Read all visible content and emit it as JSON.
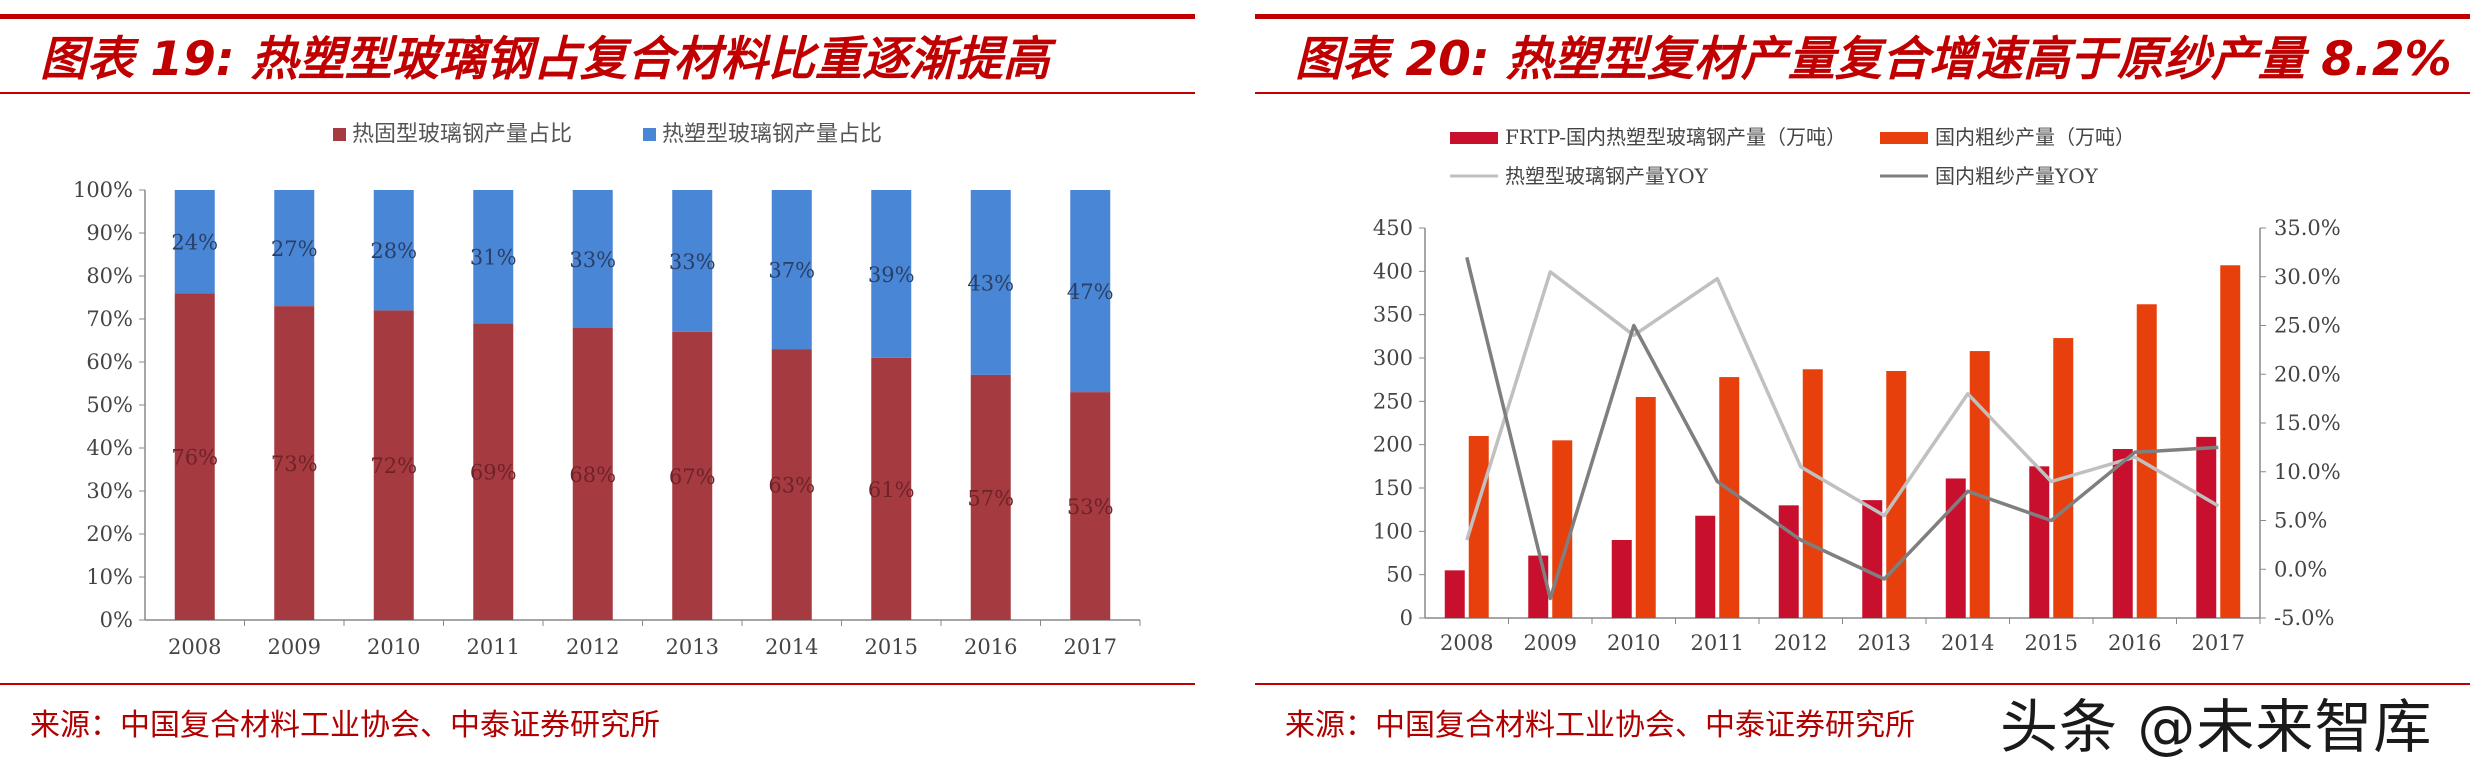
{
  "left": {
    "title": "图表 19: 热塑型玻璃钢占复合材料比重逐渐提高",
    "source": "来源：中国复合材料工业协会、中泰证券研究所"
  },
  "right": {
    "title": "图表 20: 热塑型复材产量复合增速高于原纱产量 8.2%",
    "source": "来源：中国复合材料工业协会、中泰证券研究所"
  },
  "watermark": "头条 @未来智库",
  "colors": {
    "accent": "#c00000",
    "thermoset": "#a63a41",
    "thermoplastic": "#4a86d6",
    "frtp_bar": "#c8102e",
    "roving_bar": "#e8400c",
    "frtp_yoy_line": "#c0c0c0",
    "roving_yoy_line": "#7f7f7f"
  },
  "chart_data": [
    {
      "type": "bar",
      "stacked": true,
      "categories": [
        "2008",
        "2009",
        "2010",
        "2011",
        "2012",
        "2013",
        "2014",
        "2015",
        "2016",
        "2017"
      ],
      "series": [
        {
          "name": "热固型玻璃钢产量占比",
          "values": [
            76,
            73,
            72,
            69,
            68,
            67,
            63,
            61,
            57,
            53
          ]
        },
        {
          "name": "热塑型玻璃钢产量占比",
          "values": [
            24,
            27,
            28,
            31,
            33,
            33,
            37,
            39,
            43,
            47
          ]
        }
      ],
      "data_labels": {
        "thermoset": [
          "76%",
          "73%",
          "72%",
          "69%",
          "68%",
          "67%",
          "63%",
          "61%",
          "57%",
          "53%"
        ],
        "thermoplastic": [
          "24%",
          "27%",
          "28%",
          "31%",
          "33%",
          "33%",
          "37%",
          "39%",
          "43%",
          "47%"
        ]
      },
      "ylim": [
        0,
        100
      ],
      "yticks": [
        "0%",
        "10%",
        "20%",
        "30%",
        "40%",
        "50%",
        "60%",
        "70%",
        "80%",
        "90%",
        "100%"
      ],
      "legend_position": "top",
      "grid": false
    },
    {
      "type": "bar+line",
      "categories": [
        "2008",
        "2009",
        "2010",
        "2011",
        "2012",
        "2013",
        "2014",
        "2015",
        "2016",
        "2017"
      ],
      "bar_series": [
        {
          "name": "FRTP-国内热塑型玻璃钢产量（万吨）",
          "axis": "left",
          "values": [
            55,
            72,
            90,
            118,
            130,
            136,
            161,
            175,
            195,
            209
          ]
        },
        {
          "name": "国内粗纱产量（万吨）",
          "axis": "left",
          "values": [
            210,
            205,
            255,
            278,
            287,
            285,
            308,
            323,
            362,
            407
          ]
        }
      ],
      "line_series": [
        {
          "name": "热塑型玻璃钢产量YOY",
          "axis": "right",
          "values": [
            3.0,
            30.5,
            24.0,
            29.8,
            10.5,
            5.5,
            18.0,
            9.0,
            11.5,
            6.5
          ]
        },
        {
          "name": "国内粗纱产量YOY",
          "axis": "right",
          "values": [
            32.0,
            -3.0,
            25.0,
            9.0,
            3.0,
            -1.0,
            8.0,
            5.0,
            12.0,
            12.5
          ]
        }
      ],
      "ylim_left": [
        0,
        450
      ],
      "ylim_right": [
        -5,
        35
      ],
      "yticks_left": [
        "0",
        "50",
        "100",
        "150",
        "200",
        "250",
        "300",
        "350",
        "400",
        "450"
      ],
      "yticks_right": [
        "-5.0%",
        "0.0%",
        "5.0%",
        "10.0%",
        "15.0%",
        "20.0%",
        "25.0%",
        "30.0%",
        "35.0%"
      ],
      "legend_position": "top",
      "grid": false
    }
  ]
}
